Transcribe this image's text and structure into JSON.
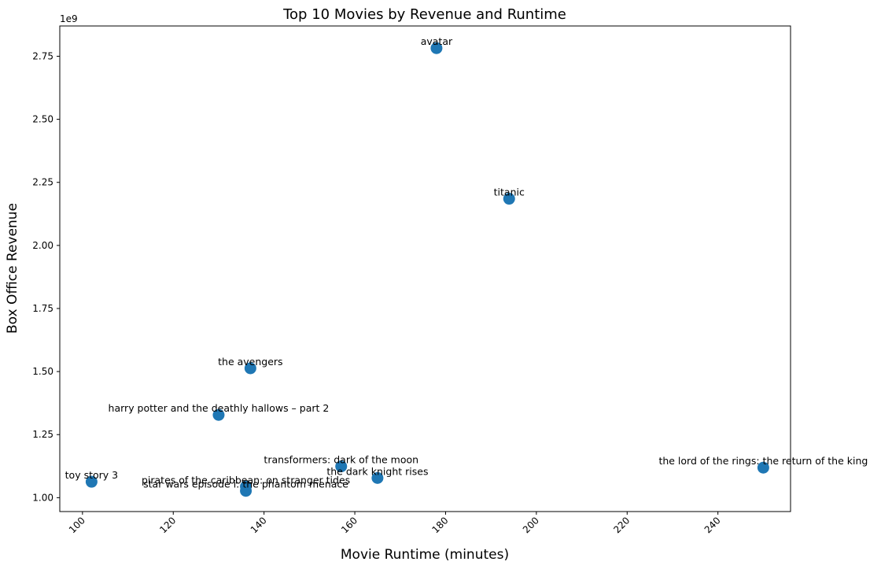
{
  "chart_data": {
    "type": "scatter",
    "title": "Top 10 Movies by Revenue and Runtime",
    "xlabel": "Movie Runtime (minutes)",
    "ylabel": "Box Office Revenue",
    "y_offset_label": "1e9",
    "xlim": [
      95,
      256
    ],
    "ylim": [
      0.945,
      2.87
    ],
    "x_ticks": [
      100,
      120,
      140,
      160,
      180,
      200,
      220,
      240
    ],
    "y_ticks": [
      1.0,
      1.25,
      1.5,
      1.75,
      2.0,
      2.25,
      2.5,
      2.75
    ],
    "y_tick_labels": [
      "1.00",
      "1.25",
      "1.50",
      "1.75",
      "2.00",
      "2.25",
      "2.50",
      "2.75"
    ],
    "grid": false,
    "marker_color": "#1f77b4",
    "points": [
      {
        "label": "avatar",
        "x": 178,
        "y": 2.782
      },
      {
        "label": "titanic",
        "x": 194,
        "y": 2.185
      },
      {
        "label": "the avengers",
        "x": 137,
        "y": 1.513
      },
      {
        "label": "harry potter and the deathly hallows – part 2",
        "x": 130,
        "y": 1.328
      },
      {
        "label": "transformers: dark of the moon",
        "x": 157,
        "y": 1.124
      },
      {
        "label": "the lord of the rings: the return of the king",
        "x": 250,
        "y": 1.119
      },
      {
        "label": "the dark knight rises",
        "x": 165,
        "y": 1.078
      },
      {
        "label": "toy story 3",
        "x": 102,
        "y": 1.063
      },
      {
        "label": "pirates of the caribbean: on stranger tides",
        "x": 136,
        "y": 1.044
      },
      {
        "label": "star wars episode i: the phantom menace",
        "x": 136,
        "y": 1.027
      }
    ]
  }
}
